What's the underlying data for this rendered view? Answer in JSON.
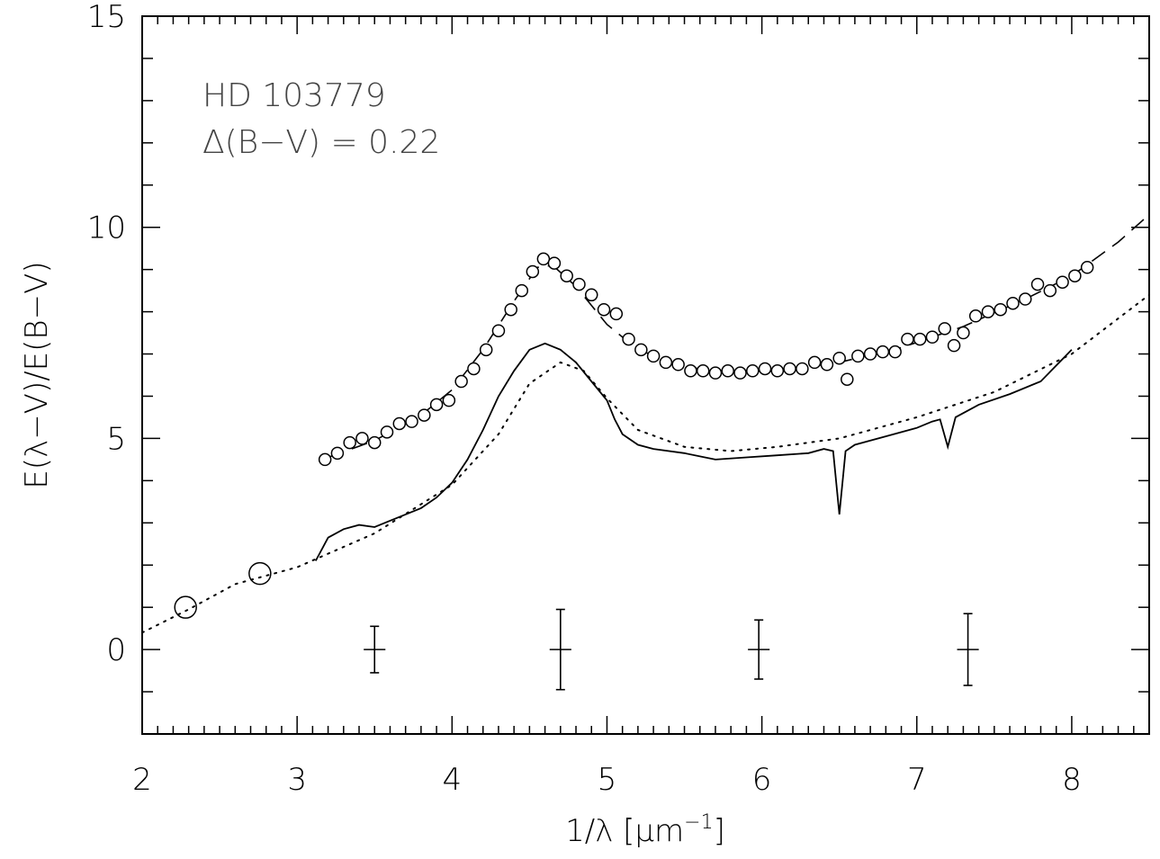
{
  "chart_data": {
    "type": "scatter",
    "xlabel": {
      "pre": "1/λ [μm",
      "sup": "−1",
      "post": "]"
    },
    "ylabel": "E(λ−V)/E(B−V)",
    "xlim": [
      2,
      8.5
    ],
    "ylim": [
      -2,
      15
    ],
    "x_ticks": [
      2,
      3,
      4,
      5,
      6,
      7,
      8
    ],
    "y_ticks": [
      0,
      5,
      10,
      15
    ],
    "annotations": [
      "HD 103779",
      "Δ(B−V) = 0.22"
    ],
    "series": [
      {
        "style": "open-circles-with-dashed-fit",
        "points": [
          [
            3.18,
            4.5
          ],
          [
            3.26,
            4.65
          ],
          [
            3.34,
            4.9
          ],
          [
            3.42,
            5.0
          ],
          [
            3.5,
            4.9
          ],
          [
            3.58,
            5.15
          ],
          [
            3.66,
            5.35
          ],
          [
            3.74,
            5.4
          ],
          [
            3.82,
            5.55
          ],
          [
            3.9,
            5.8
          ],
          [
            3.98,
            5.9
          ],
          [
            4.06,
            6.35
          ],
          [
            4.14,
            6.65
          ],
          [
            4.22,
            7.1
          ],
          [
            4.3,
            7.55
          ],
          [
            4.38,
            8.05
          ],
          [
            4.45,
            8.5
          ],
          [
            4.52,
            8.95
          ],
          [
            4.59,
            9.25
          ],
          [
            4.66,
            9.15
          ],
          [
            4.74,
            8.85
          ],
          [
            4.82,
            8.65
          ],
          [
            4.9,
            8.4
          ],
          [
            4.98,
            8.05
          ],
          [
            5.06,
            7.95
          ],
          [
            5.14,
            7.35
          ],
          [
            5.22,
            7.1
          ],
          [
            5.3,
            6.95
          ],
          [
            5.38,
            6.8
          ],
          [
            5.46,
            6.75
          ],
          [
            5.54,
            6.6
          ],
          [
            5.62,
            6.6
          ],
          [
            5.7,
            6.55
          ],
          [
            5.78,
            6.6
          ],
          [
            5.86,
            6.55
          ],
          [
            5.94,
            6.6
          ],
          [
            6.02,
            6.65
          ],
          [
            6.1,
            6.6
          ],
          [
            6.18,
            6.65
          ],
          [
            6.26,
            6.65
          ],
          [
            6.34,
            6.8
          ],
          [
            6.42,
            6.75
          ],
          [
            6.5,
            6.9
          ],
          [
            6.55,
            6.4
          ],
          [
            6.62,
            6.95
          ],
          [
            6.7,
            7.0
          ],
          [
            6.78,
            7.05
          ],
          [
            6.86,
            7.05
          ],
          [
            6.94,
            7.35
          ],
          [
            7.02,
            7.35
          ],
          [
            7.1,
            7.4
          ],
          [
            7.18,
            7.6
          ],
          [
            7.24,
            7.2
          ],
          [
            7.3,
            7.5
          ],
          [
            7.38,
            7.9
          ],
          [
            7.46,
            8.0
          ],
          [
            7.54,
            8.05
          ],
          [
            7.62,
            8.2
          ],
          [
            7.7,
            8.3
          ],
          [
            7.78,
            8.65
          ],
          [
            7.86,
            8.5
          ],
          [
            7.94,
            8.7
          ],
          [
            8.02,
            8.85
          ],
          [
            8.1,
            9.05
          ]
        ]
      },
      {
        "style": "dashed-fit",
        "points": [
          [
            3.2,
            4.55
          ],
          [
            3.5,
            4.95
          ],
          [
            3.8,
            5.55
          ],
          [
            4.0,
            6.15
          ],
          [
            4.2,
            7.1
          ],
          [
            4.4,
            8.25
          ],
          [
            4.55,
            9.05
          ],
          [
            4.65,
            9.1
          ],
          [
            4.8,
            8.6
          ],
          [
            5.0,
            7.7
          ],
          [
            5.2,
            7.1
          ],
          [
            5.5,
            6.7
          ],
          [
            5.8,
            6.55
          ],
          [
            6.1,
            6.6
          ],
          [
            6.5,
            6.8
          ],
          [
            6.9,
            7.15
          ],
          [
            7.3,
            7.65
          ],
          [
            7.7,
            8.3
          ],
          [
            8.0,
            8.85
          ],
          [
            8.3,
            9.65
          ],
          [
            8.5,
            10.3
          ]
        ]
      },
      {
        "style": "solid-spectrum",
        "points": [
          [
            3.12,
            2.1
          ],
          [
            3.2,
            2.65
          ],
          [
            3.3,
            2.85
          ],
          [
            3.4,
            2.95
          ],
          [
            3.5,
            2.9
          ],
          [
            3.6,
            3.05
          ],
          [
            3.7,
            3.2
          ],
          [
            3.8,
            3.35
          ],
          [
            3.9,
            3.6
          ],
          [
            4.0,
            3.95
          ],
          [
            4.1,
            4.5
          ],
          [
            4.2,
            5.2
          ],
          [
            4.3,
            6.0
          ],
          [
            4.4,
            6.6
          ],
          [
            4.5,
            7.1
          ],
          [
            4.6,
            7.25
          ],
          [
            4.7,
            7.1
          ],
          [
            4.8,
            6.8
          ],
          [
            4.9,
            6.35
          ],
          [
            5.0,
            5.9
          ],
          [
            5.05,
            5.45
          ],
          [
            5.1,
            5.1
          ],
          [
            5.2,
            4.85
          ],
          [
            5.3,
            4.75
          ],
          [
            5.5,
            4.65
          ],
          [
            5.7,
            4.5
          ],
          [
            5.9,
            4.55
          ],
          [
            6.1,
            4.6
          ],
          [
            6.3,
            4.65
          ],
          [
            6.4,
            4.75
          ],
          [
            6.46,
            4.7
          ],
          [
            6.5,
            3.2
          ],
          [
            6.54,
            4.7
          ],
          [
            6.6,
            4.85
          ],
          [
            6.8,
            5.05
          ],
          [
            7.0,
            5.25
          ],
          [
            7.1,
            5.4
          ],
          [
            7.15,
            5.45
          ],
          [
            7.2,
            4.8
          ],
          [
            7.25,
            5.5
          ],
          [
            7.4,
            5.8
          ],
          [
            7.6,
            6.05
          ],
          [
            7.8,
            6.35
          ],
          [
            8.0,
            7.1
          ]
        ]
      },
      {
        "style": "dotted-fit",
        "points": [
          [
            2.0,
            0.4
          ],
          [
            2.3,
            0.95
          ],
          [
            2.6,
            1.55
          ],
          [
            3.0,
            1.95
          ],
          [
            3.5,
            2.75
          ],
          [
            4.0,
            3.9
          ],
          [
            4.3,
            5.1
          ],
          [
            4.5,
            6.3
          ],
          [
            4.7,
            6.8
          ],
          [
            4.85,
            6.6
          ],
          [
            5.0,
            5.95
          ],
          [
            5.2,
            5.2
          ],
          [
            5.5,
            4.8
          ],
          [
            5.8,
            4.7
          ],
          [
            6.1,
            4.8
          ],
          [
            6.5,
            5.0
          ],
          [
            7.0,
            5.5
          ],
          [
            7.5,
            6.1
          ],
          [
            8.0,
            7.0
          ],
          [
            8.5,
            8.4
          ]
        ]
      },
      {
        "style": "large-open-circles",
        "points": [
          [
            2.28,
            1.0
          ],
          [
            2.76,
            1.8
          ]
        ]
      }
    ],
    "error_bars": [
      {
        "x": 3.5,
        "y": 0,
        "yerr": 0.55,
        "xerr": 0.07
      },
      {
        "x": 4.7,
        "y": 0,
        "yerr": 0.95,
        "xerr": 0.07
      },
      {
        "x": 5.98,
        "y": 0,
        "yerr": 0.7,
        "xerr": 0.07
      },
      {
        "x": 7.33,
        "y": 0,
        "yerr": 0.85,
        "xerr": 0.07
      }
    ]
  }
}
